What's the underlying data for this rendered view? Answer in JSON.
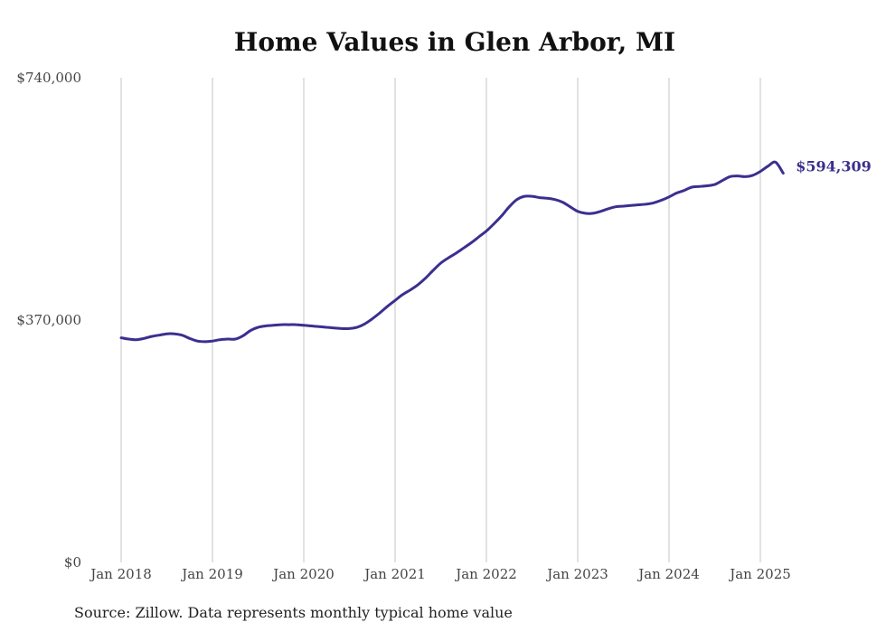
{
  "chart_data": {
    "type": "line",
    "title": "Home Values in Glen Arbor, MI",
    "source": "Source: Zillow. Data represents monthly typical home value",
    "ylim": [
      0,
      740000
    ],
    "y_ticks": [
      0,
      370000,
      740000
    ],
    "y_tick_labels": [
      "$0",
      "$370,000",
      "$740,000"
    ],
    "x_ticks": [
      "2018-01",
      "2019-01",
      "2020-01",
      "2021-01",
      "2022-01",
      "2023-01",
      "2024-01",
      "2025-01"
    ],
    "x_tick_labels": [
      "Jan 2018",
      "Jan 2019",
      "Jan 2020",
      "Jan 2021",
      "Jan 2022",
      "Jan 2023",
      "Jan 2024",
      "Jan 2025"
    ],
    "grid": "vertical",
    "line_color": "#3b2f8f",
    "end_label": "$594,309",
    "series": [
      {
        "x": [
          "2018-01",
          "2018-02",
          "2018-03",
          "2018-04",
          "2018-05",
          "2018-06",
          "2018-07",
          "2018-08",
          "2018-09",
          "2018-10",
          "2018-11",
          "2018-12",
          "2019-01",
          "2019-02",
          "2019-03",
          "2019-04",
          "2019-05",
          "2019-06",
          "2019-07",
          "2019-08",
          "2019-09",
          "2019-10",
          "2019-11",
          "2019-12",
          "2020-01",
          "2020-02",
          "2020-03",
          "2020-04",
          "2020-05",
          "2020-06",
          "2020-07",
          "2020-08",
          "2020-09",
          "2020-10",
          "2020-11",
          "2020-12",
          "2021-01",
          "2021-02",
          "2021-03",
          "2021-04",
          "2021-05",
          "2021-06",
          "2021-07",
          "2021-08",
          "2021-09",
          "2021-10",
          "2021-11",
          "2021-12",
          "2022-01",
          "2022-02",
          "2022-03",
          "2022-04",
          "2022-05",
          "2022-06",
          "2022-07",
          "2022-08",
          "2022-09",
          "2022-10",
          "2022-11",
          "2022-12",
          "2023-01",
          "2023-02",
          "2023-03",
          "2023-04",
          "2023-05",
          "2023-06",
          "2023-07",
          "2023-08",
          "2023-09",
          "2023-10",
          "2023-11",
          "2023-12",
          "2024-01",
          "2024-02",
          "2024-03",
          "2024-04",
          "2024-05",
          "2024-06",
          "2024-07",
          "2024-08",
          "2024-09",
          "2024-10",
          "2024-11",
          "2024-12",
          "2025-01",
          "2025-02",
          "2025-03",
          "2025-04"
        ],
        "values": [
          343000,
          341000,
          340000,
          342000,
          345000,
          347000,
          349000,
          349000,
          347000,
          342000,
          338000,
          337000,
          338000,
          340000,
          341000,
          341000,
          346000,
          354000,
          359000,
          361000,
          362000,
          363000,
          363000,
          363000,
          362000,
          361000,
          360000,
          359000,
          358000,
          357000,
          357000,
          359000,
          364000,
          372000,
          381000,
          391000,
          400000,
          409000,
          416000,
          424000,
          434000,
          446000,
          457000,
          465000,
          472000,
          480000,
          488000,
          497000,
          506000,
          517000,
          529000,
          543000,
          554000,
          559000,
          559000,
          557000,
          556000,
          554000,
          550000,
          543000,
          536000,
          533000,
          533000,
          536000,
          540000,
          543000,
          544000,
          545000,
          546000,
          547000,
          549000,
          553000,
          558000,
          564000,
          568000,
          573000,
          574000,
          575000,
          577000,
          583000,
          589000,
          590000,
          589000,
          591000,
          597000,
          605000,
          611000,
          594309
        ]
      }
    ]
  }
}
